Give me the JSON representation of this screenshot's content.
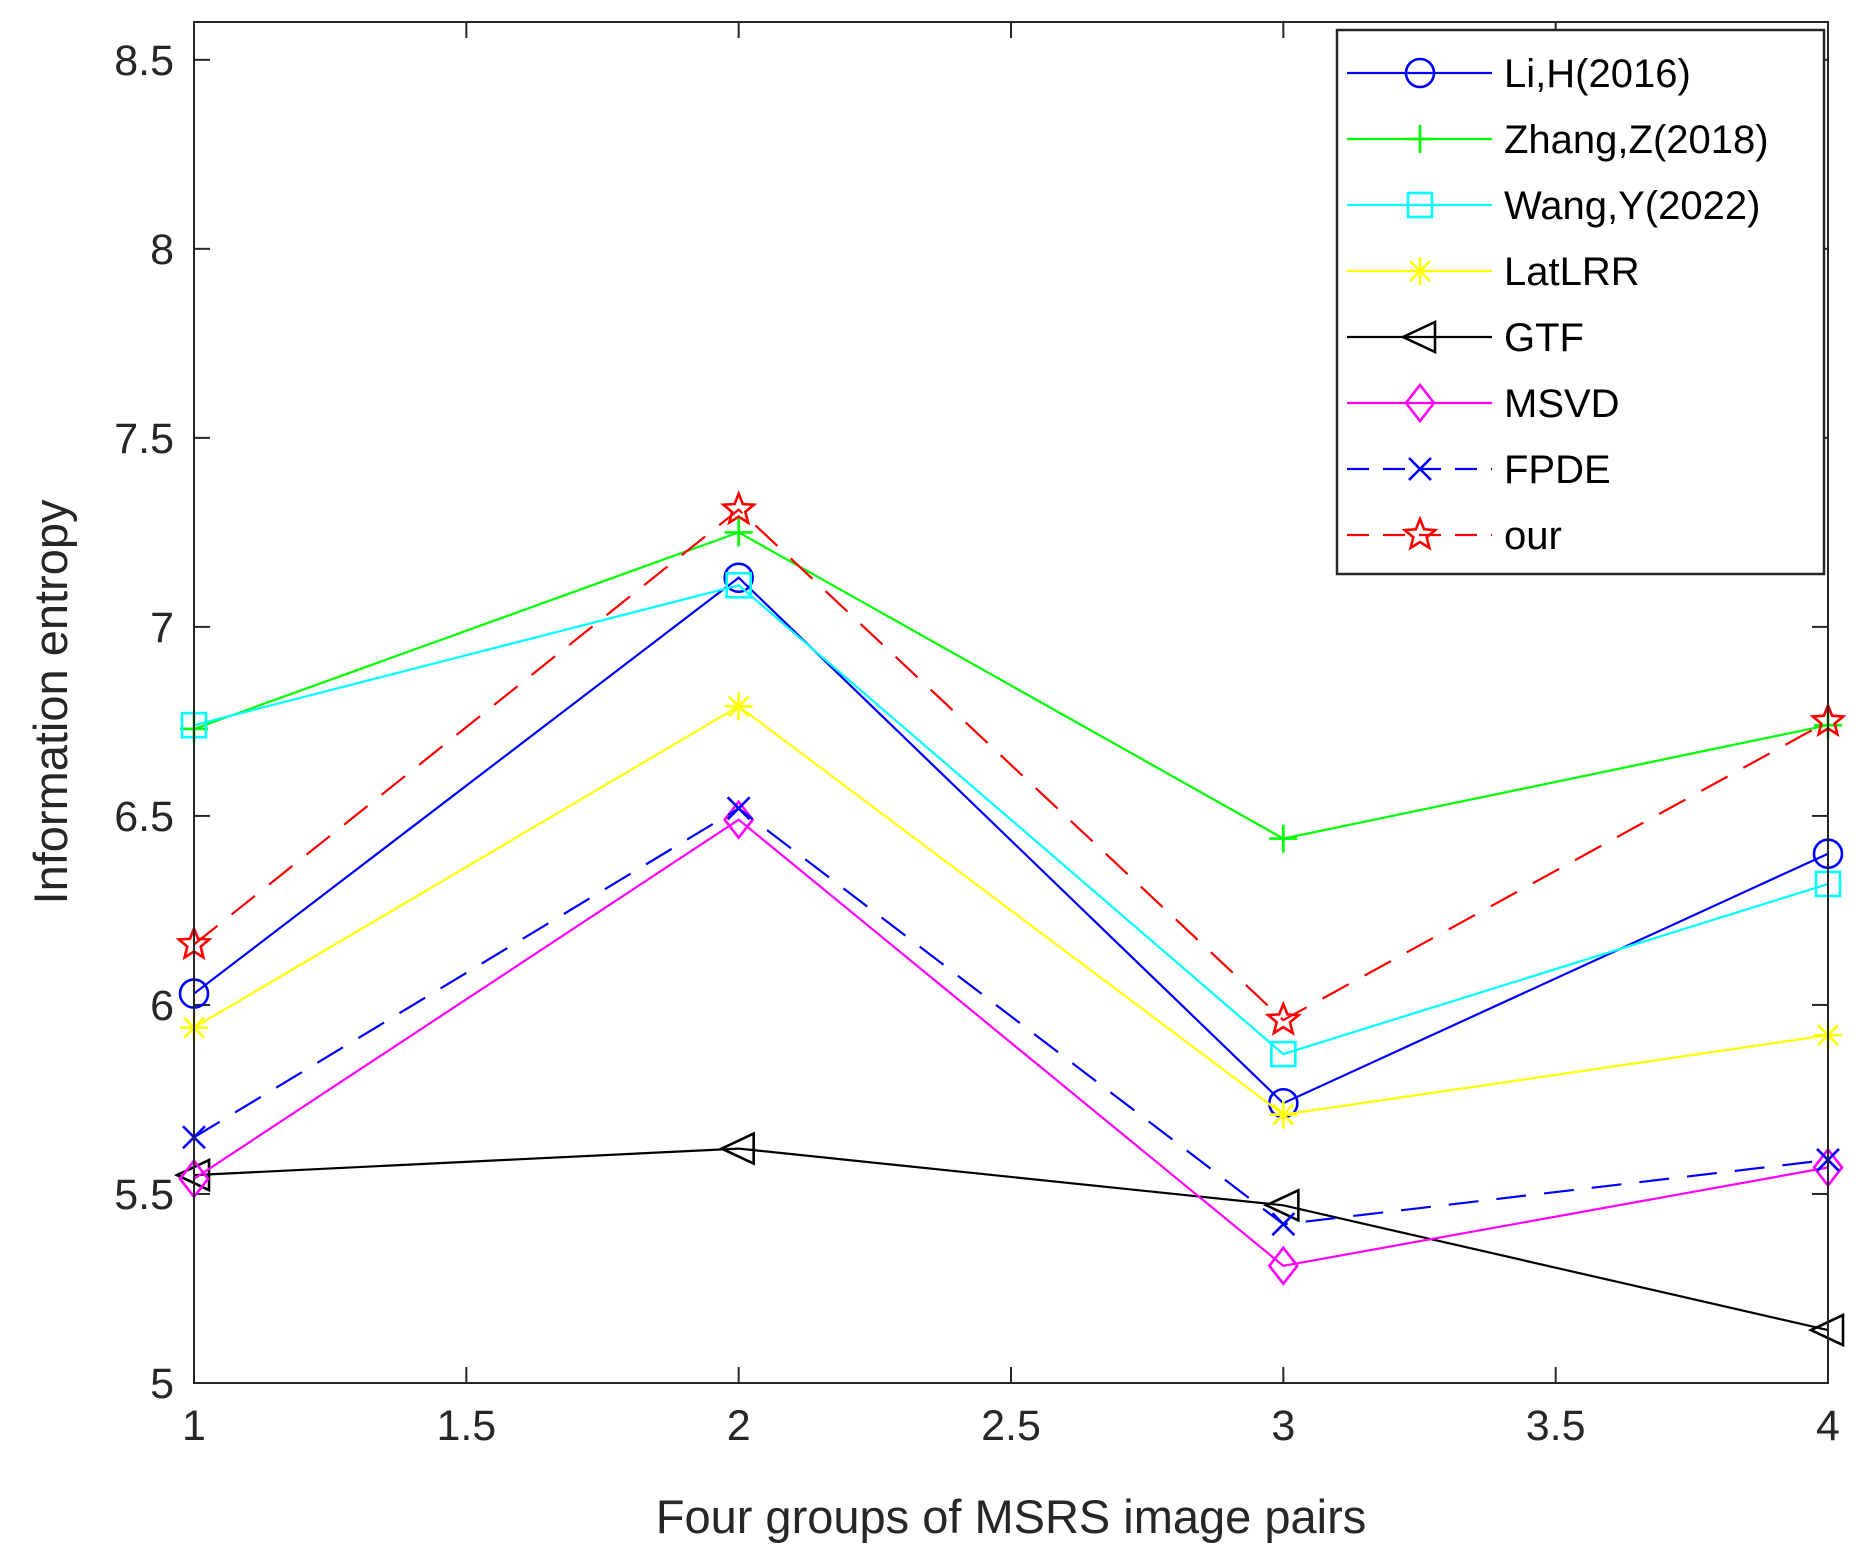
{
  "chart_data": {
    "type": "line",
    "title": "",
    "xlabel": "Four groups of MSRS image pairs",
    "ylabel": "Information entropy",
    "xlim": [
      1,
      4
    ],
    "ylim": [
      5,
      8.6
    ],
    "xticks": [
      1,
      1.5,
      2,
      2.5,
      3,
      3.5,
      4
    ],
    "xtick_labels": [
      "1",
      "1.5",
      "2",
      "2.5",
      "3",
      "3.5",
      "4"
    ],
    "yticks": [
      5,
      5.5,
      6,
      6.5,
      7,
      7.5,
      8,
      8.5
    ],
    "ytick_labels": [
      "5",
      "5.5",
      "6",
      "6.5",
      "7",
      "7.5",
      "8",
      "8.5"
    ],
    "grid": false,
    "legend_position": "top-right",
    "x": [
      1,
      2,
      3,
      4
    ],
    "series": [
      {
        "name": "Li,H(2016)",
        "values": [
          6.03,
          7.13,
          5.74,
          6.4
        ],
        "color": "#0000ff",
        "marker": "circle",
        "dash": "solid"
      },
      {
        "name": "Zhang,Z(2018)",
        "values": [
          6.73,
          7.25,
          6.44,
          6.74
        ],
        "color": "#00ff00",
        "marker": "plus",
        "dash": "solid"
      },
      {
        "name": "Wang,Y(2022)",
        "values": [
          6.74,
          7.11,
          5.87,
          6.32
        ],
        "color": "#00ffff",
        "marker": "square",
        "dash": "solid"
      },
      {
        "name": "LatLRR",
        "values": [
          5.94,
          6.79,
          5.71,
          5.92
        ],
        "color": "#ffff00",
        "marker": "asterisk",
        "dash": "solid"
      },
      {
        "name": "GTF",
        "values": [
          5.55,
          5.62,
          5.47,
          5.14
        ],
        "color": "#000000",
        "marker": "triangle-left",
        "dash": "solid"
      },
      {
        "name": "MSVD",
        "values": [
          5.54,
          6.49,
          5.31,
          5.57
        ],
        "color": "#ff00ff",
        "marker": "diamond",
        "dash": "solid"
      },
      {
        "name": "FPDE",
        "values": [
          5.65,
          6.52,
          5.42,
          5.59
        ],
        "color": "#0000ff",
        "marker": "x",
        "dash": "dashed"
      },
      {
        "name": "our",
        "values": [
          6.16,
          7.31,
          5.96,
          6.75
        ],
        "color": "#ff0000",
        "marker": "star",
        "dash": "dashed"
      }
    ]
  }
}
